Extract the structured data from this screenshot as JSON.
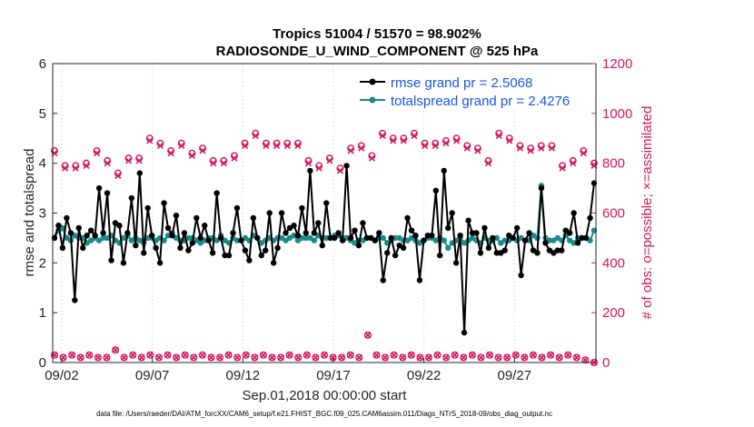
{
  "chart_data": {
    "type": "line",
    "title_line1": "Tropics 51004 / 51570 = 98.902%",
    "title_line2": "RADIOSONDE_U_WIND_COMPONENT @ 525 hPa",
    "xlabel": "Sep.01,2018 00:00:00 start",
    "ylabel_left": "rmse and totalspread",
    "ylabel_right": "# of obs: o=possible; ×=assimilated",
    "footer": "data file: /Users/raeder/DAI/ATM_forcXX/CAM6_setup/f.e21.FHIST_BGC.f09_025.CAM6assim.011/Diags_NTrS_2018-09/obs_diag_output.nc",
    "xlim": [
      1.5,
      31.5
    ],
    "ylim_left": [
      0,
      6
    ],
    "ylim_right": [
      0,
      1200
    ],
    "x_ticks": [
      2,
      7,
      12,
      17,
      22,
      27
    ],
    "x_tick_labels": [
      "09/02",
      "09/07",
      "09/12",
      "09/17",
      "09/22",
      "09/27"
    ],
    "y_left_ticks": [
      "0",
      "1",
      "2",
      "3",
      "4",
      "5",
      "6"
    ],
    "y_right_ticks": [
      "0",
      "200",
      "400",
      "600",
      "800",
      "1000",
      "1200"
    ],
    "legend": {
      "rmse_label": "rmse grand pr = 2.5068",
      "spread_label": "totalspread grand pr = 2.4276"
    },
    "colors": {
      "rmse": "#000000",
      "spread": "#1a8a8a",
      "obs": "#d6175d",
      "legend_text": "#1a56e8"
    },
    "rmse": [
      2.5,
      2.75,
      2.3,
      2.9,
      2.6,
      1.25,
      2.7,
      2.3,
      2.55,
      2.65,
      2.55,
      3.5,
      2.6,
      3.4,
      2.05,
      2.8,
      2.75,
      2.0,
      2.6,
      3.3,
      2.35,
      3.8,
      2.2,
      3.1,
      2.55,
      2.3,
      2.0,
      3.2,
      2.7,
      2.55,
      2.95,
      2.3,
      2.6,
      2.25,
      2.4,
      2.9,
      2.5,
      2.75,
      2.45,
      2.2,
      3.4,
      2.5,
      2.15,
      2.15,
      2.6,
      3.1,
      2.45,
      2.25,
      2.05,
      2.9,
      2.5,
      2.15,
      2.25,
      3.0,
      2.0,
      2.3,
      3.0,
      2.6,
      2.7,
      2.75,
      2.55,
      3.1,
      2.6,
      3.85,
      2.6,
      2.8,
      2.35,
      3.2,
      2.5,
      2.5,
      2.6,
      2.45,
      3.95,
      2.5,
      2.65,
      2.35,
      2.8,
      2.5,
      2.5,
      2.45,
      2.6,
      1.65,
      2.2,
      2.5,
      2.15,
      2.35,
      2.3,
      2.9,
      2.65,
      2.55,
      1.65,
      2.45,
      2.55,
      2.55,
      3.45,
      2.15,
      3.85,
      2.7,
      3.0,
      2.0,
      2.55,
      0.6,
      2.85,
      2.6,
      2.6,
      2.2,
      2.7,
      2.3,
      2.5,
      2.2,
      2.2,
      2.25,
      2.55,
      2.5,
      2.7,
      1.75,
      2.45,
      2.6,
      2.25,
      2.2,
      3.5,
      2.4,
      2.25,
      2.2,
      2.25,
      2.25,
      2.65,
      2.6,
      3.0,
      2.4,
      2.5,
      2.5,
      2.9,
      3.6
    ],
    "totalspread": [
      2.5,
      2.65,
      2.7,
      2.5,
      2.45,
      2.55,
      2.5,
      2.5,
      2.4,
      2.45,
      2.5,
      2.45,
      2.5,
      2.5,
      2.55,
      2.45,
      2.4,
      2.5,
      2.55,
      2.45,
      2.5,
      2.45,
      2.4,
      2.5,
      2.5,
      2.45,
      2.5,
      2.45,
      2.55,
      2.6,
      2.5,
      2.45,
      2.45,
      2.5,
      2.5,
      2.45,
      2.4,
      2.45,
      2.5,
      2.5,
      2.45,
      2.55,
      2.45,
      2.4,
      2.5,
      2.45,
      2.45,
      2.5,
      2.45,
      2.55,
      2.5,
      2.4,
      2.45,
      2.5,
      2.45,
      2.5,
      2.5,
      2.45,
      2.5,
      2.55,
      2.45,
      2.5,
      2.5,
      2.5,
      2.45,
      2.55,
      2.5,
      2.5,
      2.5,
      2.55,
      2.55,
      2.5,
      2.5,
      2.45,
      2.4,
      2.45,
      2.45,
      2.5,
      2.5,
      2.45,
      2.5,
      2.5,
      2.4,
      2.45,
      2.5,
      2.5,
      2.45,
      2.45,
      2.5,
      2.45,
      2.4,
      2.45,
      2.5,
      2.5,
      2.45,
      2.5,
      2.45,
      2.3,
      2.4,
      2.45,
      2.5,
      2.4,
      2.45,
      2.5,
      2.45,
      2.4,
      2.5,
      2.45,
      2.45,
      2.5,
      2.4,
      2.45,
      2.45,
      2.5,
      2.45,
      2.5,
      2.45,
      2.45,
      2.55,
      2.5,
      3.55,
      2.5,
      2.45,
      2.45,
      2.5,
      2.45,
      2.55,
      2.45,
      2.4,
      2.5,
      2.5,
      2.5,
      2.45,
      2.65
    ],
    "obs_possible": [
      850,
      790,
      790,
      800,
      850,
      810,
      760,
      820,
      820,
      900,
      880,
      850,
      880,
      840,
      860,
      810,
      810,
      830,
      880,
      920,
      880,
      880,
      880,
      880,
      810,
      790,
      820,
      780,
      860,
      870,
      830,
      920,
      900,
      900,
      920,
      880,
      880,
      890,
      900,
      870,
      860,
      810,
      920,
      900,
      870,
      860,
      870,
      870,
      790,
      810,
      850,
      800
    ],
    "obs_assimilated": [
      840,
      780,
      780,
      790,
      840,
      800,
      750,
      810,
      810,
      890,
      870,
      840,
      870,
      830,
      850,
      800,
      800,
      820,
      870,
      910,
      870,
      870,
      870,
      870,
      800,
      780,
      810,
      770,
      850,
      860,
      820,
      910,
      890,
      890,
      910,
      870,
      870,
      880,
      890,
      860,
      850,
      800,
      910,
      890,
      860,
      850,
      860,
      860,
      780,
      800,
      840,
      790
    ],
    "obs_low": [
      30,
      20,
      30,
      20,
      30,
      20,
      20,
      50,
      20,
      30,
      20,
      30,
      20,
      30,
      20,
      30,
      20,
      30,
      20,
      20,
      30,
      20,
      30,
      20,
      30,
      20,
      20,
      30,
      20,
      30,
      20,
      30,
      20,
      20,
      30,
      20,
      110,
      30,
      20,
      30,
      20,
      30,
      20,
      20,
      30,
      20,
      30,
      20,
      30,
      20,
      30,
      20,
      20,
      30,
      20,
      30,
      20,
      30,
      20,
      30,
      20,
      10,
      0
    ]
  }
}
